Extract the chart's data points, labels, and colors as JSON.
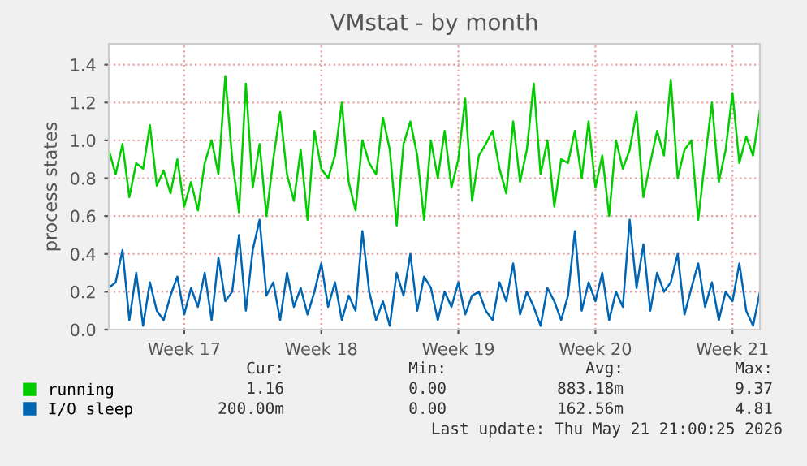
{
  "chart_data": {
    "type": "line",
    "title": "VMstat - by month",
    "ylabel": "process states",
    "categories": [
      null,
      null,
      null,
      null,
      null,
      null,
      null,
      null,
      null,
      null,
      null,
      "Week 17",
      null,
      null,
      null,
      null,
      null,
      null,
      null,
      null,
      null,
      null,
      null,
      null,
      null,
      null,
      null,
      null,
      null,
      null,
      null,
      "Week 18",
      null,
      null,
      null,
      null,
      null,
      null,
      null,
      null,
      null,
      null,
      null,
      null,
      null,
      null,
      null,
      null,
      null,
      null,
      null,
      "Week 19",
      null,
      null,
      null,
      null,
      null,
      null,
      null,
      null,
      null,
      null,
      null,
      null,
      null,
      null,
      null,
      null,
      null,
      null,
      null,
      "Week 20",
      null,
      null,
      null,
      null,
      null,
      null,
      null,
      null,
      null,
      null,
      null,
      null,
      null,
      null,
      null,
      null,
      null,
      null,
      null,
      "Week 21",
      null,
      null,
      null,
      null
    ],
    "series": [
      {
        "name": "running",
        "color": "#00cc00",
        "values": [
          0.95,
          0.82,
          0.98,
          0.7,
          0.88,
          0.85,
          1.08,
          0.76,
          0.84,
          0.72,
          0.9,
          0.65,
          0.78,
          0.63,
          0.88,
          1.0,
          0.82,
          1.34,
          0.9,
          0.62,
          1.3,
          0.75,
          0.98,
          0.6,
          0.9,
          1.15,
          0.82,
          0.68,
          0.95,
          0.58,
          1.05,
          0.85,
          0.8,
          0.92,
          1.2,
          0.78,
          0.63,
          1.0,
          0.88,
          0.82,
          1.12,
          0.95,
          0.55,
          0.98,
          1.1,
          0.92,
          0.58,
          1.0,
          0.8,
          1.05,
          0.75,
          0.9,
          1.22,
          0.68,
          0.92,
          0.98,
          1.05,
          0.85,
          0.72,
          1.1,
          0.78,
          0.95,
          1.3,
          0.82,
          1.0,
          0.65,
          0.9,
          0.88,
          1.05,
          0.8,
          1.1,
          0.75,
          0.92,
          0.6,
          1.0,
          0.85,
          0.95,
          1.15,
          0.7,
          0.88,
          1.05,
          0.92,
          1.32,
          0.8,
          0.95,
          1.0,
          0.58,
          0.9,
          1.2,
          0.78,
          0.95,
          1.25,
          0.88,
          1.02,
          0.92,
          1.16
        ]
      },
      {
        "name": "I/O sleep",
        "color": "#0066b3",
        "values": [
          0.22,
          0.25,
          0.42,
          0.05,
          0.3,
          0.02,
          0.25,
          0.1,
          0.05,
          0.18,
          0.28,
          0.08,
          0.22,
          0.12,
          0.3,
          0.05,
          0.38,
          0.15,
          0.2,
          0.5,
          0.1,
          0.42,
          0.58,
          0.18,
          0.25,
          0.05,
          0.3,
          0.12,
          0.22,
          0.08,
          0.2,
          0.35,
          0.12,
          0.25,
          0.05,
          0.18,
          0.1,
          0.52,
          0.2,
          0.05,
          0.15,
          0.02,
          0.3,
          0.18,
          0.4,
          0.1,
          0.28,
          0.22,
          0.05,
          0.2,
          0.12,
          0.25,
          0.08,
          0.18,
          0.2,
          0.1,
          0.05,
          0.25,
          0.15,
          0.35,
          0.08,
          0.2,
          0.12,
          0.02,
          0.22,
          0.15,
          0.05,
          0.18,
          0.52,
          0.1,
          0.25,
          0.15,
          0.3,
          0.05,
          0.2,
          0.12,
          0.58,
          0.22,
          0.45,
          0.1,
          0.3,
          0.2,
          0.25,
          0.4,
          0.08,
          0.22,
          0.35,
          0.12,
          0.25,
          0.05,
          0.2,
          0.15,
          0.35,
          0.1,
          0.02,
          0.2
        ]
      }
    ],
    "ylim": [
      0,
      1.51
    ],
    "yticks": [
      {
        "value": 0,
        "label": "0.0"
      },
      0.2,
      0.4,
      0.6,
      0.8,
      {
        "value": 1,
        "label": "1.0"
      },
      1.2,
      1.4
    ],
    "grid": true,
    "legend": "bottom",
    "marker": "none",
    "line_style": "solid",
    "annotations": [
      "Cur:",
      "Min:",
      "Avg:",
      "Max:",
      "1.16",
      "0.00",
      "883.18m",
      "9.37",
      "200.00m",
      "0.00",
      "162.56m",
      "4.81",
      "Last update: Thu May 21 21:00:25 2026"
    ]
  }
}
